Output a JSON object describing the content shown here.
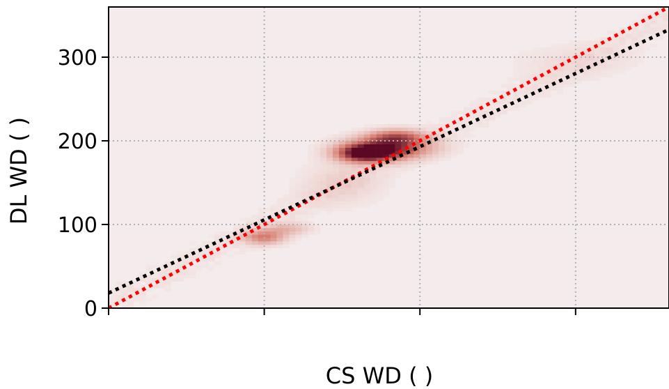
{
  "chart_data": {
    "type": "heatmap",
    "title": "",
    "xlabel": "CS WD ( )",
    "ylabel": "DL WD ( )",
    "xlim": [
      0,
      360
    ],
    "ylim": [
      0,
      360
    ],
    "x_ticks": [
      0,
      100,
      200,
      300
    ],
    "x_tick_labels": [
      "",
      "",
      "",
      ""
    ],
    "y_ticks": [
      0,
      100,
      200,
      300
    ],
    "y_tick_labels": [
      "0",
      "100",
      "200",
      "300"
    ],
    "grid": true,
    "colormap": "white-to-dark-red",
    "density_clusters": [
      {
        "x": 165,
        "y": 185,
        "sx": 12,
        "sy": 7,
        "weight": 1.0
      },
      {
        "x": 180,
        "y": 192,
        "sx": 18,
        "sy": 9,
        "weight": 0.75
      },
      {
        "x": 185,
        "y": 205,
        "sx": 12,
        "sy": 6,
        "weight": 0.5
      },
      {
        "x": 100,
        "y": 85,
        "sx": 9,
        "sy": 6,
        "weight": 0.45
      },
      {
        "x": 115,
        "y": 95,
        "sx": 10,
        "sy": 5,
        "weight": 0.22
      },
      {
        "x": 150,
        "y": 150,
        "sx": 18,
        "sy": 18,
        "weight": 0.1
      },
      {
        "x": 300,
        "y": 295,
        "sx": 30,
        "sy": 15,
        "weight": 0.05
      }
    ],
    "series": [
      {
        "name": "",
        "style": "dotted",
        "color": "#ff0000",
        "x": [
          0,
          360
        ],
        "y": [
          0,
          360
        ]
      },
      {
        "name": "",
        "style": "dotted",
        "color": "#000000",
        "x": [
          0,
          360
        ],
        "y": [
          18,
          333
        ]
      }
    ]
  }
}
